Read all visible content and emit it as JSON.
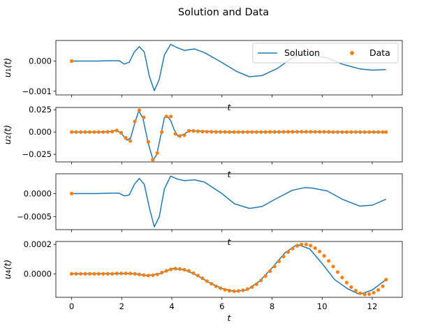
{
  "suptitle": "Solution and Data",
  "colors": {
    "solution": "#1f77b4",
    "data": "#ff7f0e"
  },
  "legend": {
    "solution_label": "Solution",
    "data_label": "Data",
    "placement": "upper-right of top panel"
  },
  "chart_data": [
    {
      "type": "line",
      "ylabel": "u1(t)",
      "xlabel": "t",
      "xlim": [
        -0.63,
        13.2
      ],
      "ylim": [
        -0.00112,
        0.00068
      ],
      "yticks": [
        -0.001,
        0.0
      ],
      "ytick_labels": [
        "−0.001",
        "0.000"
      ],
      "xticks": [
        0,
        2,
        4,
        6,
        8,
        10,
        12
      ],
      "xtick_labels_shown": false,
      "solution_points": [
        [
          0,
          0
        ],
        [
          1,
          0
        ],
        [
          1.5,
          1e-05
        ],
        [
          1.9,
          1e-05
        ],
        [
          2.1,
          -0.0001
        ],
        [
          2.3,
          -4e-05
        ],
        [
          2.5,
          0.0003
        ],
        [
          2.7,
          0.00048
        ],
        [
          2.9,
          0.0003
        ],
        [
          3.1,
          -0.0005
        ],
        [
          3.3,
          -0.00098
        ],
        [
          3.5,
          -0.0006
        ],
        [
          3.7,
          0.0002
        ],
        [
          3.95,
          0.00055
        ],
        [
          4.2,
          0.00045
        ],
        [
          4.5,
          0.00035
        ],
        [
          4.9,
          0.0004
        ],
        [
          5.3,
          0.00028
        ],
        [
          6,
          -5e-05
        ],
        [
          6.6,
          -0.00035
        ],
        [
          7.1,
          -0.00052
        ],
        [
          7.6,
          -0.00048
        ],
        [
          8.2,
          -0.00025
        ],
        [
          8.8,
          0.0001
        ],
        [
          9.3,
          0.00025
        ],
        [
          9.6,
          0.0002
        ],
        [
          10.2,
          0.0001
        ],
        [
          10.8,
          -0.0001
        ],
        [
          11.5,
          -0.00026
        ],
        [
          12,
          -0.0003
        ],
        [
          12.55,
          -0.00028
        ]
      ],
      "data_points": [
        [
          0,
          0
        ]
      ]
    },
    {
      "type": "line",
      "ylabel": "u2(t)",
      "xlabel": "t",
      "xlim": [
        -0.63,
        13.2
      ],
      "ylim": [
        -0.0335,
        0.0275
      ],
      "yticks": [
        -0.025,
        0.0,
        0.025
      ],
      "ytick_labels": [
        "−0.025",
        "0.000",
        "0.025"
      ],
      "xticks": [
        0,
        2,
        4,
        6,
        8,
        10,
        12
      ],
      "xtick_labels_shown": false,
      "solution_points": [
        [
          0,
          0
        ],
        [
          1,
          0
        ],
        [
          1.5,
          0.0003
        ],
        [
          1.8,
          0.002
        ],
        [
          2.0,
          -0.002
        ],
        [
          2.2,
          -0.009
        ],
        [
          2.35,
          -0.007
        ],
        [
          2.5,
          0.008
        ],
        [
          2.68,
          0.024
        ],
        [
          2.85,
          0.015
        ],
        [
          3.05,
          -0.012
        ],
        [
          3.25,
          -0.0315
        ],
        [
          3.4,
          -0.025
        ],
        [
          3.55,
          -0.005
        ],
        [
          3.7,
          0.016
        ],
        [
          3.82,
          0.0175
        ],
        [
          3.95,
          0.013
        ],
        [
          4.1,
          0.002
        ],
        [
          4.25,
          -0.0048
        ],
        [
          4.45,
          -0.003
        ],
        [
          4.7,
          0.0015
        ],
        [
          5.0,
          0.0012
        ],
        [
          6,
          0.0001
        ],
        [
          9,
          0.0002
        ],
        [
          12.55,
          0
        ]
      ],
      "data_points": [
        [
          0,
          0
        ],
        [
          0.18,
          0
        ],
        [
          0.36,
          0
        ],
        [
          0.54,
          0
        ],
        [
          0.72,
          0
        ],
        [
          0.9,
          0
        ],
        [
          1.08,
          0
        ],
        [
          1.26,
          0
        ],
        [
          1.44,
          0.0002
        ],
        [
          1.62,
          0.0005
        ],
        [
          1.8,
          0.0018
        ],
        [
          1.98,
          -0.001
        ],
        [
          2.16,
          -0.0065
        ],
        [
          2.34,
          -0.01
        ],
        [
          2.52,
          0.012
        ],
        [
          2.7,
          0.0245
        ],
        [
          2.88,
          0.0165
        ],
        [
          3.06,
          -0.011
        ],
        [
          3.24,
          -0.031
        ],
        [
          3.42,
          -0.0235
        ],
        [
          3.6,
          0.0
        ],
        [
          3.78,
          0.0175
        ],
        [
          3.96,
          0.0175
        ],
        [
          4.14,
          -0.002
        ],
        [
          4.32,
          -0.0045
        ],
        [
          4.5,
          -0.0035
        ],
        [
          4.68,
          0.0013
        ],
        [
          4.86,
          0.0012
        ],
        [
          5.04,
          0.0008
        ],
        [
          5.22,
          0.0005
        ],
        [
          5.4,
          0.0003
        ],
        [
          5.58,
          0.0002
        ],
        [
          5.76,
          0.0001
        ],
        [
          5.94,
          0.0001
        ],
        [
          6.12,
          0.0001
        ],
        [
          6.3,
          0
        ],
        [
          6.48,
          0
        ],
        [
          6.66,
          0
        ],
        [
          6.84,
          0
        ],
        [
          7.02,
          0
        ],
        [
          7.2,
          0
        ],
        [
          7.38,
          0
        ],
        [
          7.56,
          0
        ],
        [
          7.74,
          0
        ],
        [
          7.92,
          0.0001
        ],
        [
          8.1,
          0.0001
        ],
        [
          8.28,
          0.0001
        ],
        [
          8.46,
          0.0002
        ],
        [
          8.64,
          0.0002
        ],
        [
          8.82,
          0.0002
        ],
        [
          9.0,
          0.0003
        ],
        [
          9.18,
          0.0003
        ],
        [
          9.36,
          0.0003
        ],
        [
          9.54,
          0.0003
        ],
        [
          9.72,
          0.0003
        ],
        [
          9.9,
          0.0002
        ],
        [
          10.08,
          0.0002
        ],
        [
          10.26,
          0.0001
        ],
        [
          10.44,
          0
        ],
        [
          10.62,
          0
        ],
        [
          10.8,
          0
        ],
        [
          10.98,
          0
        ],
        [
          11.16,
          0
        ],
        [
          11.34,
          0
        ],
        [
          11.52,
          0
        ],
        [
          11.7,
          0
        ],
        [
          11.88,
          0
        ],
        [
          12.06,
          0
        ],
        [
          12.24,
          0
        ],
        [
          12.42,
          0
        ],
        [
          12.55,
          0
        ]
      ]
    },
    {
      "type": "line",
      "ylabel": "",
      "xlabel": "t",
      "xlim": [
        -0.63,
        13.2
      ],
      "ylim": [
        -0.00078,
        0.00043
      ],
      "yticks": [
        -0.0005,
        0.0
      ],
      "ytick_labels": [
        "−0.0005",
        "0.0000"
      ],
      "xticks": [
        0,
        2,
        4,
        6,
        8,
        10,
        12
      ],
      "xtick_labels_shown": false,
      "solution_points": [
        [
          0,
          0
        ],
        [
          1,
          0
        ],
        [
          1.5,
          1e-05
        ],
        [
          1.9,
          1e-05
        ],
        [
          2.1,
          -5e-05
        ],
        [
          2.3,
          -3e-05
        ],
        [
          2.5,
          0.0002
        ],
        [
          2.7,
          0.00033
        ],
        [
          2.9,
          0.0002
        ],
        [
          3.1,
          -0.0003
        ],
        [
          3.3,
          -0.00072
        ],
        [
          3.5,
          -0.0005
        ],
        [
          3.7,
          0.0001
        ],
        [
          3.95,
          0.00038
        ],
        [
          4.2,
          0.00032
        ],
        [
          4.5,
          0.00028
        ],
        [
          4.9,
          0.0003
        ],
        [
          5.3,
          0.00025
        ],
        [
          6,
          0.0
        ],
        [
          6.5,
          -0.00022
        ],
        [
          7.1,
          -0.00032
        ],
        [
          7.6,
          -0.00028
        ],
        [
          8.2,
          -0.0001
        ],
        [
          8.8,
          7e-05
        ],
        [
          9.3,
          0.00013
        ],
        [
          9.6,
          0.00012
        ],
        [
          10.2,
          6e-05
        ],
        [
          10.8,
          -0.00012
        ],
        [
          11.5,
          -0.00027
        ],
        [
          12,
          -0.00025
        ],
        [
          12.55,
          -0.00012
        ]
      ],
      "data_points": [
        [
          0,
          0
        ]
      ]
    },
    {
      "type": "line",
      "ylabel": "u4(t)",
      "xlabel": "t",
      "xlim": [
        -0.63,
        13.2
      ],
      "ylim": [
        -0.00016,
        0.00022
      ],
      "yticks": [
        0.0,
        0.0002
      ],
      "ytick_labels": [
        "0.0000",
        "0.0002"
      ],
      "xticks": [
        0,
        2,
        4,
        6,
        8,
        10,
        12
      ],
      "xtick_labels": [
        "0",
        "2",
        "4",
        "6",
        "8",
        "10",
        "12"
      ],
      "xtick_labels_shown": true,
      "solution_points": [
        [
          0,
          0
        ],
        [
          1,
          0
        ],
        [
          2,
          2e-06
        ],
        [
          2.5,
          0.0
        ],
        [
          3.0,
          -1.2e-05
        ],
        [
          3.5,
          0.0
        ],
        [
          4.0,
          3.5e-05
        ],
        [
          4.5,
          2.8e-05
        ],
        [
          5.0,
          -1e-05
        ],
        [
          5.5,
          -6e-05
        ],
        [
          6.0,
          -0.0001
        ],
        [
          6.5,
          -0.00012
        ],
        [
          7.0,
          -0.00011
        ],
        [
          7.5,
          -5e-05
        ],
        [
          8.0,
          4e-05
        ],
        [
          8.5,
          0.00014
        ],
        [
          9.0,
          0.0002
        ],
        [
          9.5,
          0.00017
        ],
        [
          10.0,
          7e-05
        ],
        [
          10.5,
          -4e-05
        ],
        [
          11.0,
          -0.0001
        ],
        [
          11.5,
          -0.00014
        ],
        [
          12.0,
          -0.00011
        ],
        [
          12.55,
          -4e-05
        ]
      ],
      "data_points": [
        [
          0,
          0
        ],
        [
          0.18,
          0
        ],
        [
          0.36,
          0
        ],
        [
          0.54,
          0
        ],
        [
          0.72,
          0
        ],
        [
          0.9,
          0
        ],
        [
          1.08,
          0
        ],
        [
          1.26,
          0
        ],
        [
          1.44,
          0
        ],
        [
          1.62,
          0
        ],
        [
          1.8,
          2e-06
        ],
        [
          1.98,
          3e-06
        ],
        [
          2.16,
          3e-06
        ],
        [
          2.34,
          2e-06
        ],
        [
          2.52,
          0.0
        ],
        [
          2.7,
          -4e-06
        ],
        [
          2.88,
          -9e-06
        ],
        [
          3.06,
          -1.2e-05
        ],
        [
          3.24,
          -1e-05
        ],
        [
          3.42,
          -4e-06
        ],
        [
          3.6,
          8e-06
        ],
        [
          3.78,
          2e-05
        ],
        [
          3.96,
          3e-05
        ],
        [
          4.14,
          3.5e-05
        ],
        [
          4.32,
          3.3e-05
        ],
        [
          4.5,
          2.8e-05
        ],
        [
          4.68,
          2e-05
        ],
        [
          4.86,
          5e-06
        ],
        [
          5.04,
          -1.2e-05
        ],
        [
          5.22,
          -3e-05
        ],
        [
          5.4,
          -5e-05
        ],
        [
          5.58,
          -6.8e-05
        ],
        [
          5.76,
          -8.5e-05
        ],
        [
          5.94,
          -9.8e-05
        ],
        [
          6.12,
          -0.000108
        ],
        [
          6.3,
          -0.000115
        ],
        [
          6.48,
          -0.000118
        ],
        [
          6.66,
          -0.000117
        ],
        [
          6.84,
          -0.000112
        ],
        [
          7.02,
          -0.000104
        ],
        [
          7.2,
          -9e-05
        ],
        [
          7.38,
          -7e-05
        ],
        [
          7.56,
          -4.5e-05
        ],
        [
          7.74,
          -1.5e-05
        ],
        [
          7.92,
          1.8e-05
        ],
        [
          8.1,
          5e-05
        ],
        [
          8.28,
          8.5e-05
        ],
        [
          8.46,
          0.000118
        ],
        [
          8.64,
          0.000148
        ],
        [
          8.82,
          0.000172
        ],
        [
          9.0,
          0.00019
        ],
        [
          9.18,
          0.0002
        ],
        [
          9.36,
          0.0002
        ],
        [
          9.54,
          0.000192
        ],
        [
          9.72,
          0.000175
        ],
        [
          9.9,
          0.000152
        ],
        [
          10.08,
          0.000122
        ],
        [
          10.26,
          8.8e-05
        ],
        [
          10.44,
          5e-05
        ],
        [
          10.62,
          1.2e-05
        ],
        [
          10.8,
          -2.5e-05
        ],
        [
          10.98,
          -6e-05
        ],
        [
          11.16,
          -9e-05
        ],
        [
          11.34,
          -0.000115
        ],
        [
          11.52,
          -0.000132
        ],
        [
          11.7,
          -0.00014
        ],
        [
          11.88,
          -0.000138
        ],
        [
          12.06,
          -0.000128
        ],
        [
          12.24,
          -0.00011
        ],
        [
          12.42,
          -8.5e-05
        ],
        [
          12.55,
          -4e-05
        ]
      ]
    }
  ]
}
